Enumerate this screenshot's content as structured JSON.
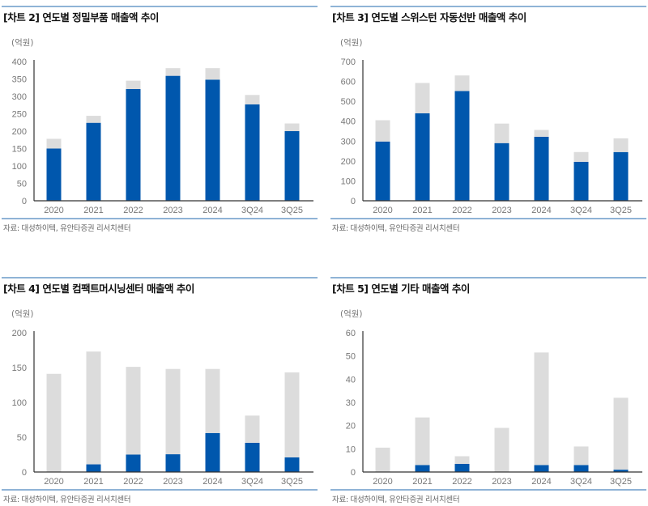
{
  "colors": {
    "primary": "#0057ad",
    "secondary": "#dcdcdc",
    "rule": "#8fb3d6"
  },
  "chart_data": [
    {
      "type": "bar",
      "stacked": true,
      "title": "[차트 2] 연도별 정밀부품 매출액 추이",
      "ylabel": "(억원)",
      "source": "자료: 대성하이텍, 유안타증권 리서치센터",
      "categories": [
        "2020",
        "2021",
        "2022",
        "2023",
        "2024",
        "3Q24",
        "3Q25"
      ],
      "ylim": [
        0,
        400
      ],
      "yticks": [
        0,
        50,
        100,
        150,
        200,
        250,
        300,
        350,
        400
      ],
      "series": [
        {
          "color": "#0057ad",
          "values": [
            150,
            224,
            321,
            359,
            348,
            277,
            200
          ]
        },
        {
          "color": "#dcdcdc",
          "values": [
            28,
            20,
            24,
            22,
            33,
            27,
            22
          ]
        }
      ]
    },
    {
      "type": "bar",
      "stacked": true,
      "title": "[차트 3] 연도별 스위스턴 자동선반 매출액 추이",
      "ylabel": "(억원)",
      "source": "자료: 대성하이텍, 유안타증권 리서치센터",
      "categories": [
        "2020",
        "2021",
        "2022",
        "2023",
        "2024",
        "3Q24",
        "3Q25"
      ],
      "ylim": [
        0,
        700
      ],
      "yticks": [
        0,
        100,
        200,
        300,
        400,
        500,
        600,
        700
      ],
      "series": [
        {
          "color": "#0057ad",
          "values": [
            298,
            440,
            552,
            290,
            322,
            196,
            245
          ]
        },
        {
          "color": "#dcdcdc",
          "values": [
            107,
            152,
            78,
            98,
            34,
            49,
            69
          ]
        }
      ]
    },
    {
      "type": "bar",
      "stacked": true,
      "title": "[차트 4] 연도별 컴팩트머시닝센터 매출액 추이",
      "ylabel": "(억원)",
      "source": "자료: 대성하이텍, 유안타증권 리서치센터",
      "categories": [
        "2020",
        "2021",
        "2022",
        "2023",
        "2024",
        "3Q24",
        "3Q25"
      ],
      "ylim": [
        0,
        200
      ],
      "yticks": [
        0,
        50,
        100,
        150,
        200
      ],
      "series": [
        {
          "color": "#0057ad",
          "values": [
            0,
            11,
            25,
            25.5,
            56,
            42,
            21
          ]
        },
        {
          "color": "#dcdcdc",
          "values": [
            141,
            162,
            126,
            122.5,
            92,
            39,
            122
          ]
        }
      ]
    },
    {
      "type": "bar",
      "stacked": true,
      "title": "[차트 5] 연도별 기타 매출액 추이",
      "ylabel": "(억원)",
      "source": "자료: 대성하이텍, 유안타증권 리서치센터",
      "categories": [
        "2020",
        "2021",
        "2022",
        "2023",
        "2024",
        "3Q24",
        "3Q25"
      ],
      "ylim": [
        0,
        60
      ],
      "yticks": [
        0,
        10,
        20,
        30,
        40,
        50,
        60
      ],
      "series": [
        {
          "color": "#0057ad",
          "values": [
            0,
            3,
            3.5,
            0,
            3,
            3,
            1
          ]
        },
        {
          "color": "#dcdcdc",
          "values": [
            10.5,
            20.5,
            3.3,
            19,
            48.5,
            8,
            31
          ]
        }
      ]
    }
  ]
}
